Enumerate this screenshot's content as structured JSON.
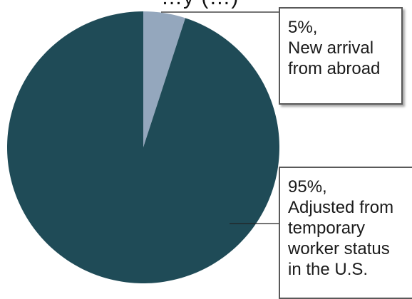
{
  "chart_data": {
    "type": "pie",
    "title": "…y (…)",
    "slices": [
      {
        "label": "New arrival from abroad",
        "value": 5,
        "color": "#94a7bd"
      },
      {
        "label": "Adjusted from temporary worker status in the U.S.",
        "value": 95,
        "color": "#1f4b57"
      }
    ],
    "callouts": [
      {
        "lines": [
          "5%,",
          "New arrival",
          "from abroad"
        ]
      },
      {
        "lines": [
          "95%,",
          "Adjusted from",
          "temporary",
          "worker status",
          "in the U.S."
        ]
      }
    ],
    "legend": "none"
  }
}
